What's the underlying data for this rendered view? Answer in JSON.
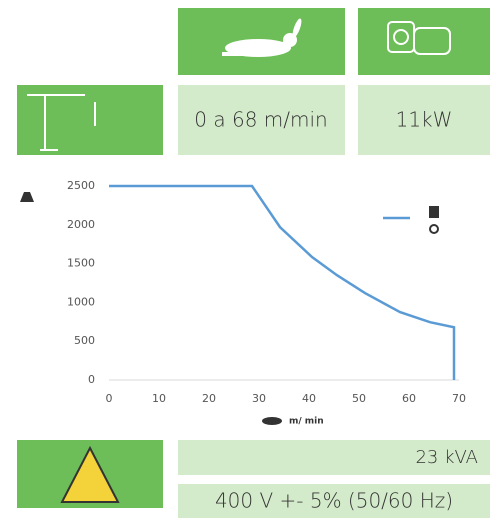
{
  "specs": {
    "speed": "0 a 68 m/min",
    "power": "11kW",
    "apparent_power": "23 kVA",
    "voltage": "400 V +- 5% (50/60 Hz)"
  },
  "chart_data": {
    "type": "line",
    "x_label": "m/ min",
    "x": [
      0,
      28.6,
      34.2,
      40.6,
      45.6,
      51.2,
      58.2,
      64.2,
      69,
      69
    ],
    "series": [
      {
        "color": "#5b9bd5",
        "values": [
          2500,
          2500,
          1970,
          1585,
          1350,
          1120,
          875,
          745,
          680,
          0
        ]
      }
    ],
    "xlim": [
      0,
      70
    ],
    "xticks": [
      0,
      10,
      20,
      30,
      40,
      50,
      60,
      70
    ],
    "ylim": [
      0,
      2500
    ],
    "yticks": [
      0,
      500,
      1000,
      1500,
      2000,
      2500
    ],
    "grid": false,
    "legend": "upper right"
  }
}
